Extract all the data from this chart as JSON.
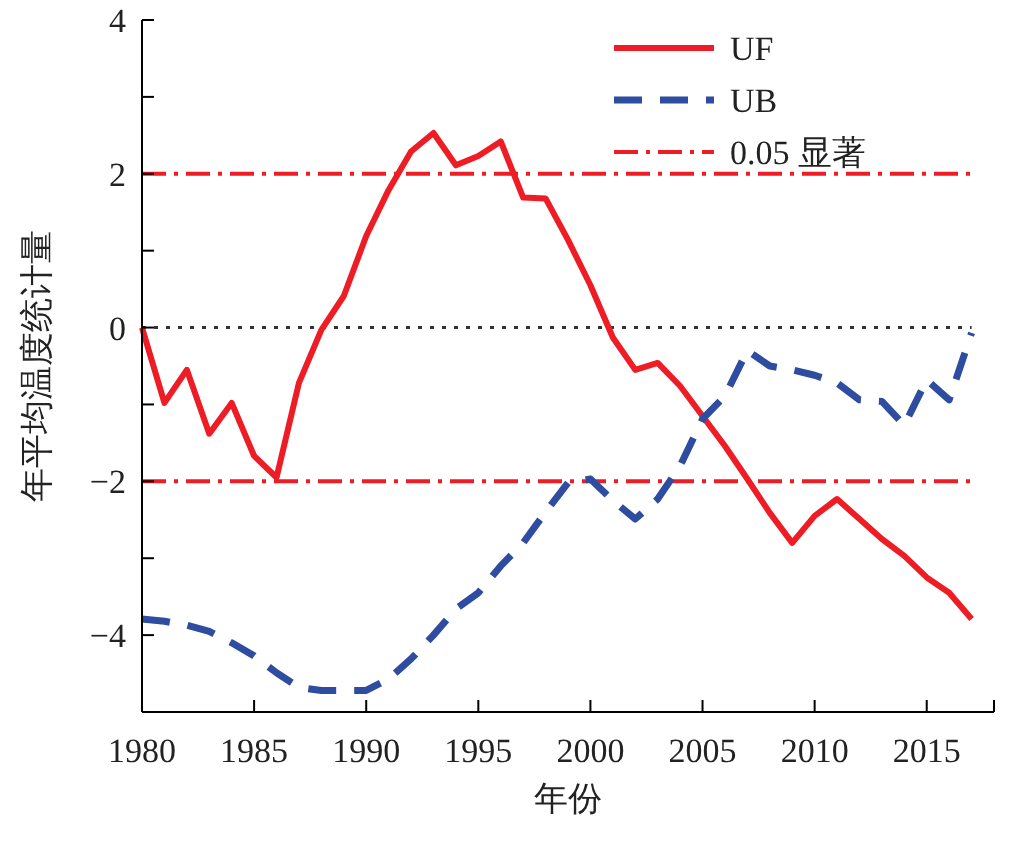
{
  "chart_data": {
    "type": "line",
    "xlabel": "年份",
    "ylabel": "年平均温度统计量",
    "x": [
      1980,
      1981,
      1982,
      1983,
      1984,
      1985,
      1986,
      1987,
      1988,
      1989,
      1990,
      1991,
      1992,
      1993,
      1994,
      1995,
      1996,
      1997,
      1998,
      1999,
      2000,
      2001,
      2002,
      2003,
      2004,
      2005,
      2006,
      2007,
      2008,
      2009,
      2010,
      2011,
      2012,
      2013,
      2014,
      2015,
      2016,
      2017
    ],
    "series": [
      {
        "name": "UF",
        "color": "#ee1c24",
        "line_style": "solid",
        "values": [
          0,
          -0.98,
          -0.55,
          -1.38,
          -0.98,
          -1.67,
          -1.95,
          -0.72,
          -0.03,
          0.41,
          1.19,
          1.79,
          2.29,
          2.53,
          2.11,
          2.23,
          2.42,
          1.69,
          1.68,
          1.14,
          0.55,
          -0.13,
          -0.55,
          -0.46,
          -0.76,
          -1.15,
          -1.54,
          -1.97,
          -2.41,
          -2.8,
          -2.45,
          -2.23,
          -2.49,
          -2.75,
          -2.97,
          -3.25,
          -3.45,
          -3.79
        ]
      },
      {
        "name": "UB",
        "color": "#2e4da0",
        "line_style": "dashed",
        "values": [
          -3.79,
          -3.82,
          -3.87,
          -3.95,
          -4.1,
          -4.27,
          -4.49,
          -4.68,
          -4.72,
          -4.72,
          -4.72,
          -4.57,
          -4.31,
          -4.0,
          -3.66,
          -3.45,
          -3.1,
          -2.8,
          -2.4,
          -2.02,
          -1.97,
          -2.25,
          -2.49,
          -2.23,
          -1.8,
          -1.19,
          -0.89,
          -0.3,
          -0.5,
          -0.55,
          -0.62,
          -0.72,
          -0.94,
          -0.96,
          -1.27,
          -0.68,
          -0.94,
          -0.07
        ]
      }
    ],
    "ref_lines": [
      {
        "axis": "y",
        "value": 2,
        "label": "0.05 显著",
        "color": "#ee1c24",
        "line_style": "dashdot"
      },
      {
        "axis": "y",
        "value": -2,
        "label": null,
        "color": "#ee1c24",
        "line_style": "dashdot"
      },
      {
        "axis": "y",
        "value": 0,
        "label": null,
        "color": "#333333",
        "line_style": "dotted"
      }
    ],
    "xlim": [
      1980,
      2018
    ],
    "xticks": [
      1980,
      1985,
      1990,
      1995,
      2000,
      2005,
      2010,
      2015
    ],
    "ylim": [
      -5,
      4
    ],
    "yticks": [
      {
        "value": -5,
        "label": null
      },
      -4,
      {
        "value": -3,
        "label": null
      },
      -2,
      {
        "value": -1,
        "label": null
      },
      0,
      {
        "value": 1,
        "label": null
      },
      2,
      {
        "value": 3,
        "label": null
      },
      4
    ],
    "legend": "top right",
    "grid": false
  }
}
